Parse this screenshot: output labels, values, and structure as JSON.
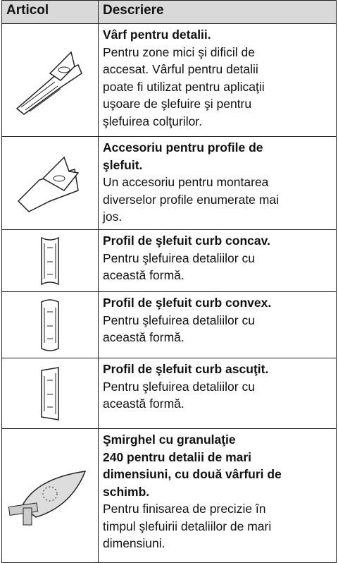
{
  "table": {
    "header": [
      "Articol",
      "Descriere"
    ],
    "rows": [
      {
        "title": [
          "Vârf pentru detalii."
        ],
        "text": [
          "Pentru zone mici şi dificil de",
          "accesat. Vârful pentru detalii",
          "poate fi utilizat pentru aplicaţii",
          "uşoare de şlefuire şi pentru",
          "şlefuirea colţurilor."
        ]
      },
      {
        "title": [
          "Accesoriu pentru profile de",
          "şlefuit."
        ],
        "text": [
          "Un accesoriu pentru montarea",
          "diverselor profile enumerate mai",
          "jos."
        ]
      },
      {
        "title": [
          "Profil de şlefuit curb concav."
        ],
        "text": [
          "Pentru şlefuirea detaliilor cu",
          "această formă."
        ]
      },
      {
        "title": [
          "Profil de şlefuit curb convex."
        ],
        "text": [
          "Pentru şlefuirea detaliilor cu",
          "această formă."
        ]
      },
      {
        "title": [
          "Profil de şlefuit curb ascuţit."
        ],
        "text": [
          "Pentru şlefuirea detaliilor cu",
          "această formă."
        ]
      },
      {
        "title": [
          "Şmirghel cu granulaţie",
          "240 pentru detalii de mari",
          "dimensiuni, cu două vârfuri de",
          "schimb."
        ],
        "text": [
          "Pentru finisarea de precizie în",
          "timpul şlefuirii detaliilor de mari",
          "dimensiuni."
        ]
      }
    ]
  }
}
